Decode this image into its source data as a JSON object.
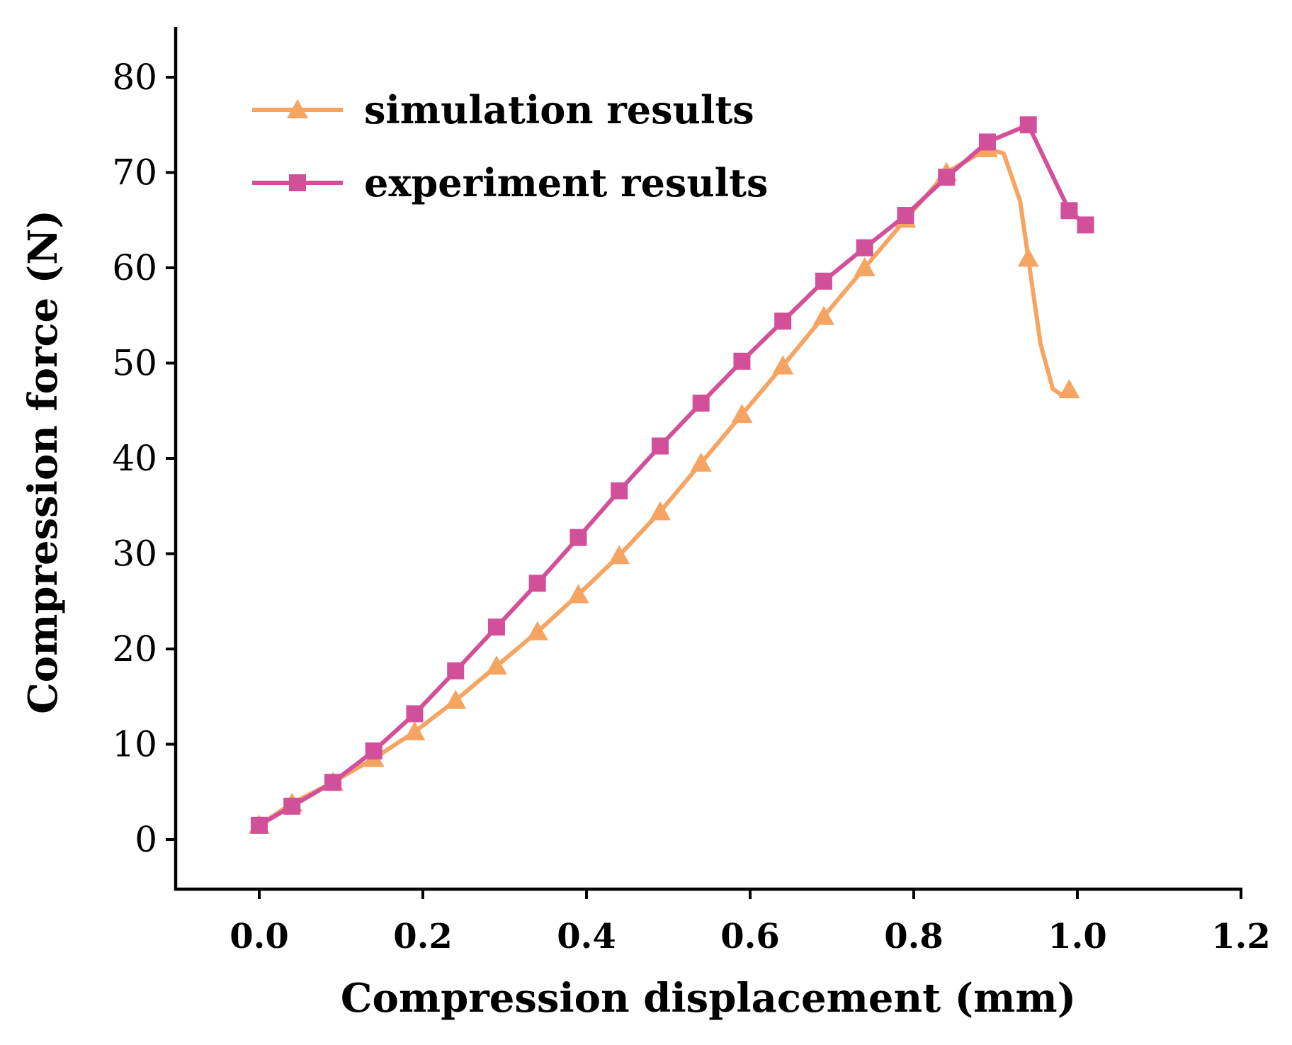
{
  "chart_data": {
    "type": "line",
    "xlabel": "Compression displacement (mm)",
    "ylabel": "Compression force (N)",
    "xlim": [
      -0.1,
      1.2
    ],
    "ylim": [
      -5,
      85
    ],
    "xticks": [
      0.0,
      0.2,
      0.4,
      0.6,
      0.8,
      1.0,
      1.2
    ],
    "yticks": [
      0,
      10,
      20,
      30,
      40,
      50,
      60,
      70,
      80
    ],
    "legend_position": "top-left",
    "grid": false,
    "series": [
      {
        "name": "simulation results",
        "color": "#F6A461",
        "marker": "triangle",
        "points": [
          [
            0.0,
            1.5
          ],
          [
            0.04,
            3.8
          ],
          [
            0.09,
            6.0
          ],
          [
            0.14,
            8.5
          ],
          [
            0.19,
            11.3
          ],
          [
            0.24,
            14.6
          ],
          [
            0.29,
            18.2
          ],
          [
            0.34,
            21.8
          ],
          [
            0.39,
            25.7
          ],
          [
            0.44,
            29.8
          ],
          [
            0.49,
            34.4
          ],
          [
            0.54,
            39.5
          ],
          [
            0.59,
            44.6
          ],
          [
            0.64,
            49.7
          ],
          [
            0.69,
            54.9
          ],
          [
            0.74,
            60.0
          ],
          [
            0.79,
            65.1
          ],
          [
            0.84,
            70.0
          ],
          [
            0.89,
            72.5
          ],
          [
            0.94,
            61.0
          ],
          [
            0.99,
            47.2
          ]
        ],
        "curve": [
          [
            0.0,
            1.5
          ],
          [
            0.04,
            3.8
          ],
          [
            0.09,
            6.0
          ],
          [
            0.14,
            8.5
          ],
          [
            0.19,
            11.3
          ],
          [
            0.24,
            14.6
          ],
          [
            0.29,
            18.2
          ],
          [
            0.34,
            21.8
          ],
          [
            0.39,
            25.7
          ],
          [
            0.44,
            29.8
          ],
          [
            0.49,
            34.4
          ],
          [
            0.54,
            39.5
          ],
          [
            0.59,
            44.6
          ],
          [
            0.64,
            49.7
          ],
          [
            0.69,
            54.9
          ],
          [
            0.74,
            60.0
          ],
          [
            0.79,
            65.1
          ],
          [
            0.84,
            70.0
          ],
          [
            0.89,
            72.5
          ],
          [
            0.91,
            72.0
          ],
          [
            0.93,
            67.0
          ],
          [
            0.94,
            61.0
          ],
          [
            0.955,
            52.0
          ],
          [
            0.97,
            47.3
          ],
          [
            0.98,
            46.7
          ],
          [
            0.99,
            47.2
          ]
        ]
      },
      {
        "name": "experiment results",
        "color": "#D2509A",
        "marker": "square",
        "points": [
          [
            0.0,
            1.5
          ],
          [
            0.04,
            3.5
          ],
          [
            0.09,
            6.0
          ],
          [
            0.14,
            9.3
          ],
          [
            0.19,
            13.2
          ],
          [
            0.24,
            17.7
          ],
          [
            0.29,
            22.3
          ],
          [
            0.34,
            26.9
          ],
          [
            0.39,
            31.7
          ],
          [
            0.44,
            36.6
          ],
          [
            0.49,
            41.3
          ],
          [
            0.54,
            45.8
          ],
          [
            0.59,
            50.2
          ],
          [
            0.64,
            54.4
          ],
          [
            0.69,
            58.6
          ],
          [
            0.74,
            62.1
          ],
          [
            0.79,
            65.5
          ],
          [
            0.84,
            69.5
          ],
          [
            0.89,
            73.2
          ],
          [
            0.94,
            75.0
          ],
          [
            0.99,
            66.0
          ],
          [
            1.01,
            64.5
          ]
        ],
        "curve": [
          [
            0.0,
            1.5
          ],
          [
            0.04,
            3.5
          ],
          [
            0.09,
            6.0
          ],
          [
            0.14,
            9.3
          ],
          [
            0.19,
            13.2
          ],
          [
            0.24,
            17.7
          ],
          [
            0.29,
            22.3
          ],
          [
            0.34,
            26.9
          ],
          [
            0.39,
            31.7
          ],
          [
            0.44,
            36.6
          ],
          [
            0.49,
            41.3
          ],
          [
            0.54,
            45.8
          ],
          [
            0.59,
            50.2
          ],
          [
            0.64,
            54.4
          ],
          [
            0.69,
            58.6
          ],
          [
            0.74,
            62.1
          ],
          [
            0.79,
            65.5
          ],
          [
            0.84,
            69.5
          ],
          [
            0.89,
            73.2
          ],
          [
            0.94,
            75.0
          ],
          [
            0.99,
            66.0
          ],
          [
            1.01,
            64.5
          ]
        ]
      }
    ]
  }
}
